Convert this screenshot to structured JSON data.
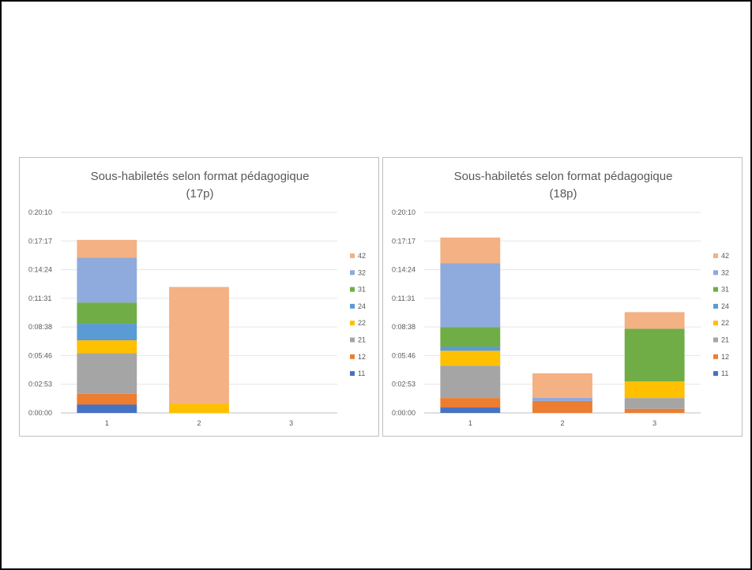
{
  "chart_data": [
    {
      "type": "bar",
      "stacked": true,
      "title": "Sous-habiletés selon format pédagogique",
      "subtitle": "(17p)",
      "categories": [
        "1",
        "2",
        "3"
      ],
      "y_ticks": [
        "0:00:00",
        "0:02:53",
        "0:05:46",
        "0:08:38",
        "0:11:31",
        "0:14:24",
        "0:17:17",
        "0:20:10"
      ],
      "ylim_seconds": [
        0,
        1210
      ],
      "grid": true,
      "legend_position": "right",
      "series": [
        {
          "name": "11",
          "color": "#4472C4",
          "values": [
            50,
            0,
            0
          ]
        },
        {
          "name": "12",
          "color": "#ED7D31",
          "values": [
            65,
            0,
            0
          ]
        },
        {
          "name": "21",
          "color": "#A5A5A5",
          "values": [
            245,
            0,
            0
          ]
        },
        {
          "name": "22",
          "color": "#FFC000",
          "values": [
            78,
            55,
            0
          ]
        },
        {
          "name": "24",
          "color": "#5B9BD5",
          "values": [
            100,
            0,
            0
          ]
        },
        {
          "name": "31",
          "color": "#70AD47",
          "values": [
            128,
            0,
            0
          ]
        },
        {
          "name": "32",
          "color": "#8FAADC",
          "values": [
            270,
            0,
            0
          ]
        },
        {
          "name": "42",
          "color": "#F4B183",
          "values": [
            108,
            705,
            0
          ]
        }
      ]
    },
    {
      "type": "bar",
      "stacked": true,
      "title": "Sous-habiletés selon format pédagogique",
      "subtitle": "(18p)",
      "categories": [
        "1",
        "2",
        "3"
      ],
      "y_ticks": [
        "0:00:00",
        "0:02:53",
        "0:05:46",
        "0:08:38",
        "0:11:31",
        "0:14:24",
        "0:17:17",
        "0:20:10"
      ],
      "ylim_seconds": [
        0,
        1210
      ],
      "grid": true,
      "legend_position": "right",
      "series": [
        {
          "name": "11",
          "color": "#4472C4",
          "values": [
            33,
            0,
            0
          ]
        },
        {
          "name": "12",
          "color": "#ED7D31",
          "values": [
            57,
            72,
            25
          ]
        },
        {
          "name": "21",
          "color": "#A5A5A5",
          "values": [
            195,
            0,
            65
          ]
        },
        {
          "name": "22",
          "color": "#FFC000",
          "values": [
            90,
            0,
            100
          ]
        },
        {
          "name": "24",
          "color": "#5B9BD5",
          "values": [
            25,
            0,
            0
          ]
        },
        {
          "name": "31",
          "color": "#70AD47",
          "values": [
            118,
            0,
            318
          ]
        },
        {
          "name": "32",
          "color": "#8FAADC",
          "values": [
            385,
            20,
            0
          ]
        },
        {
          "name": "42",
          "color": "#F4B183",
          "values": [
            155,
            147,
            100
          ]
        }
      ]
    }
  ]
}
